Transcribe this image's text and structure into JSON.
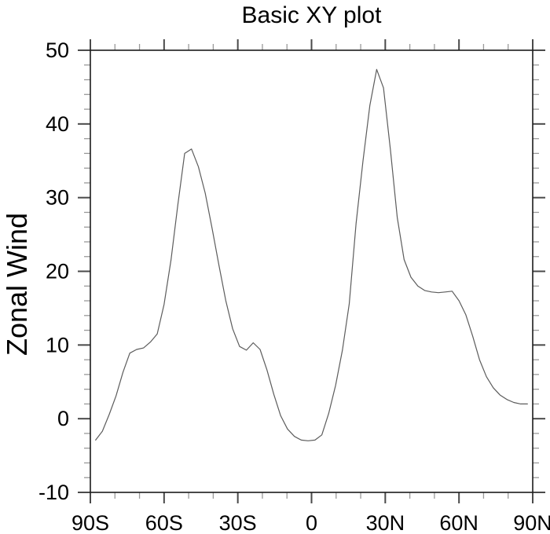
{
  "chart_data": {
    "type": "line",
    "title": "Basic XY plot",
    "ylabel": "Zonal Wind",
    "xlabel": "",
    "xlim": [
      -90,
      90
    ],
    "ylim": [
      -10,
      50
    ],
    "grid": false,
    "legend": "none",
    "x_major_ticks": [
      -90,
      -60,
      -30,
      0,
      30,
      60,
      90
    ],
    "x_tick_labels": [
      "90S",
      "60S",
      "30S",
      "0",
      "30N",
      "60N",
      "90N"
    ],
    "x_minor_step": 10,
    "y_major_ticks": [
      -10,
      0,
      10,
      20,
      30,
      40,
      50
    ],
    "y_tick_labels": [
      "-10",
      "0",
      "10",
      "20",
      "30",
      "40",
      "50"
    ],
    "y_minor_step": 2,
    "frame_color": "#1c1c1c",
    "major_tick_color": "#4a4a4a",
    "minor_tick_color": "#999999",
    "line_color": "#5c5c5c",
    "series": [
      {
        "name": "zonal-wind",
        "x": [
          -87.86,
          -85.1,
          -82.31,
          -79.53,
          -76.74,
          -73.95,
          -71.16,
          -68.37,
          -65.58,
          -62.79,
          -60.0,
          -57.21,
          -54.42,
          -51.63,
          -48.84,
          -46.04,
          -43.25,
          -40.46,
          -37.67,
          -34.88,
          -32.09,
          -29.3,
          -26.51,
          -23.72,
          -20.93,
          -18.14,
          -15.35,
          -12.56,
          -9.77,
          -6.98,
          -4.19,
          -1.4,
          1.4,
          4.19,
          6.98,
          9.77,
          12.56,
          15.35,
          18.14,
          20.93,
          23.72,
          26.51,
          29.3,
          32.09,
          34.88,
          37.67,
          40.46,
          43.25,
          46.04,
          48.84,
          51.63,
          54.42,
          57.21,
          60.0,
          62.79,
          65.58,
          68.37,
          71.16,
          73.95,
          76.74,
          79.53,
          82.31,
          85.1,
          87.86
        ],
        "values": [
          -2.9,
          -1.7,
          0.6,
          3.1,
          6.3,
          8.9,
          9.4,
          9.6,
          10.4,
          11.5,
          15.5,
          21.5,
          29.0,
          36.0,
          36.6,
          34.2,
          30.6,
          25.8,
          20.8,
          16.0,
          12.2,
          9.8,
          9.3,
          10.3,
          9.4,
          6.6,
          3.3,
          0.4,
          -1.4,
          -2.4,
          -2.9,
          -3.0,
          -2.9,
          -2.2,
          0.7,
          4.5,
          9.3,
          15.6,
          26.5,
          35.0,
          42.5,
          47.4,
          44.9,
          36.5,
          27.3,
          21.6,
          19.2,
          18.0,
          17.4,
          17.2,
          17.1,
          17.2,
          17.3,
          16.0,
          14.1,
          11.2,
          8.0,
          5.7,
          4.2,
          3.2,
          2.6,
          2.2,
          2.0,
          2.0
        ]
      }
    ]
  }
}
